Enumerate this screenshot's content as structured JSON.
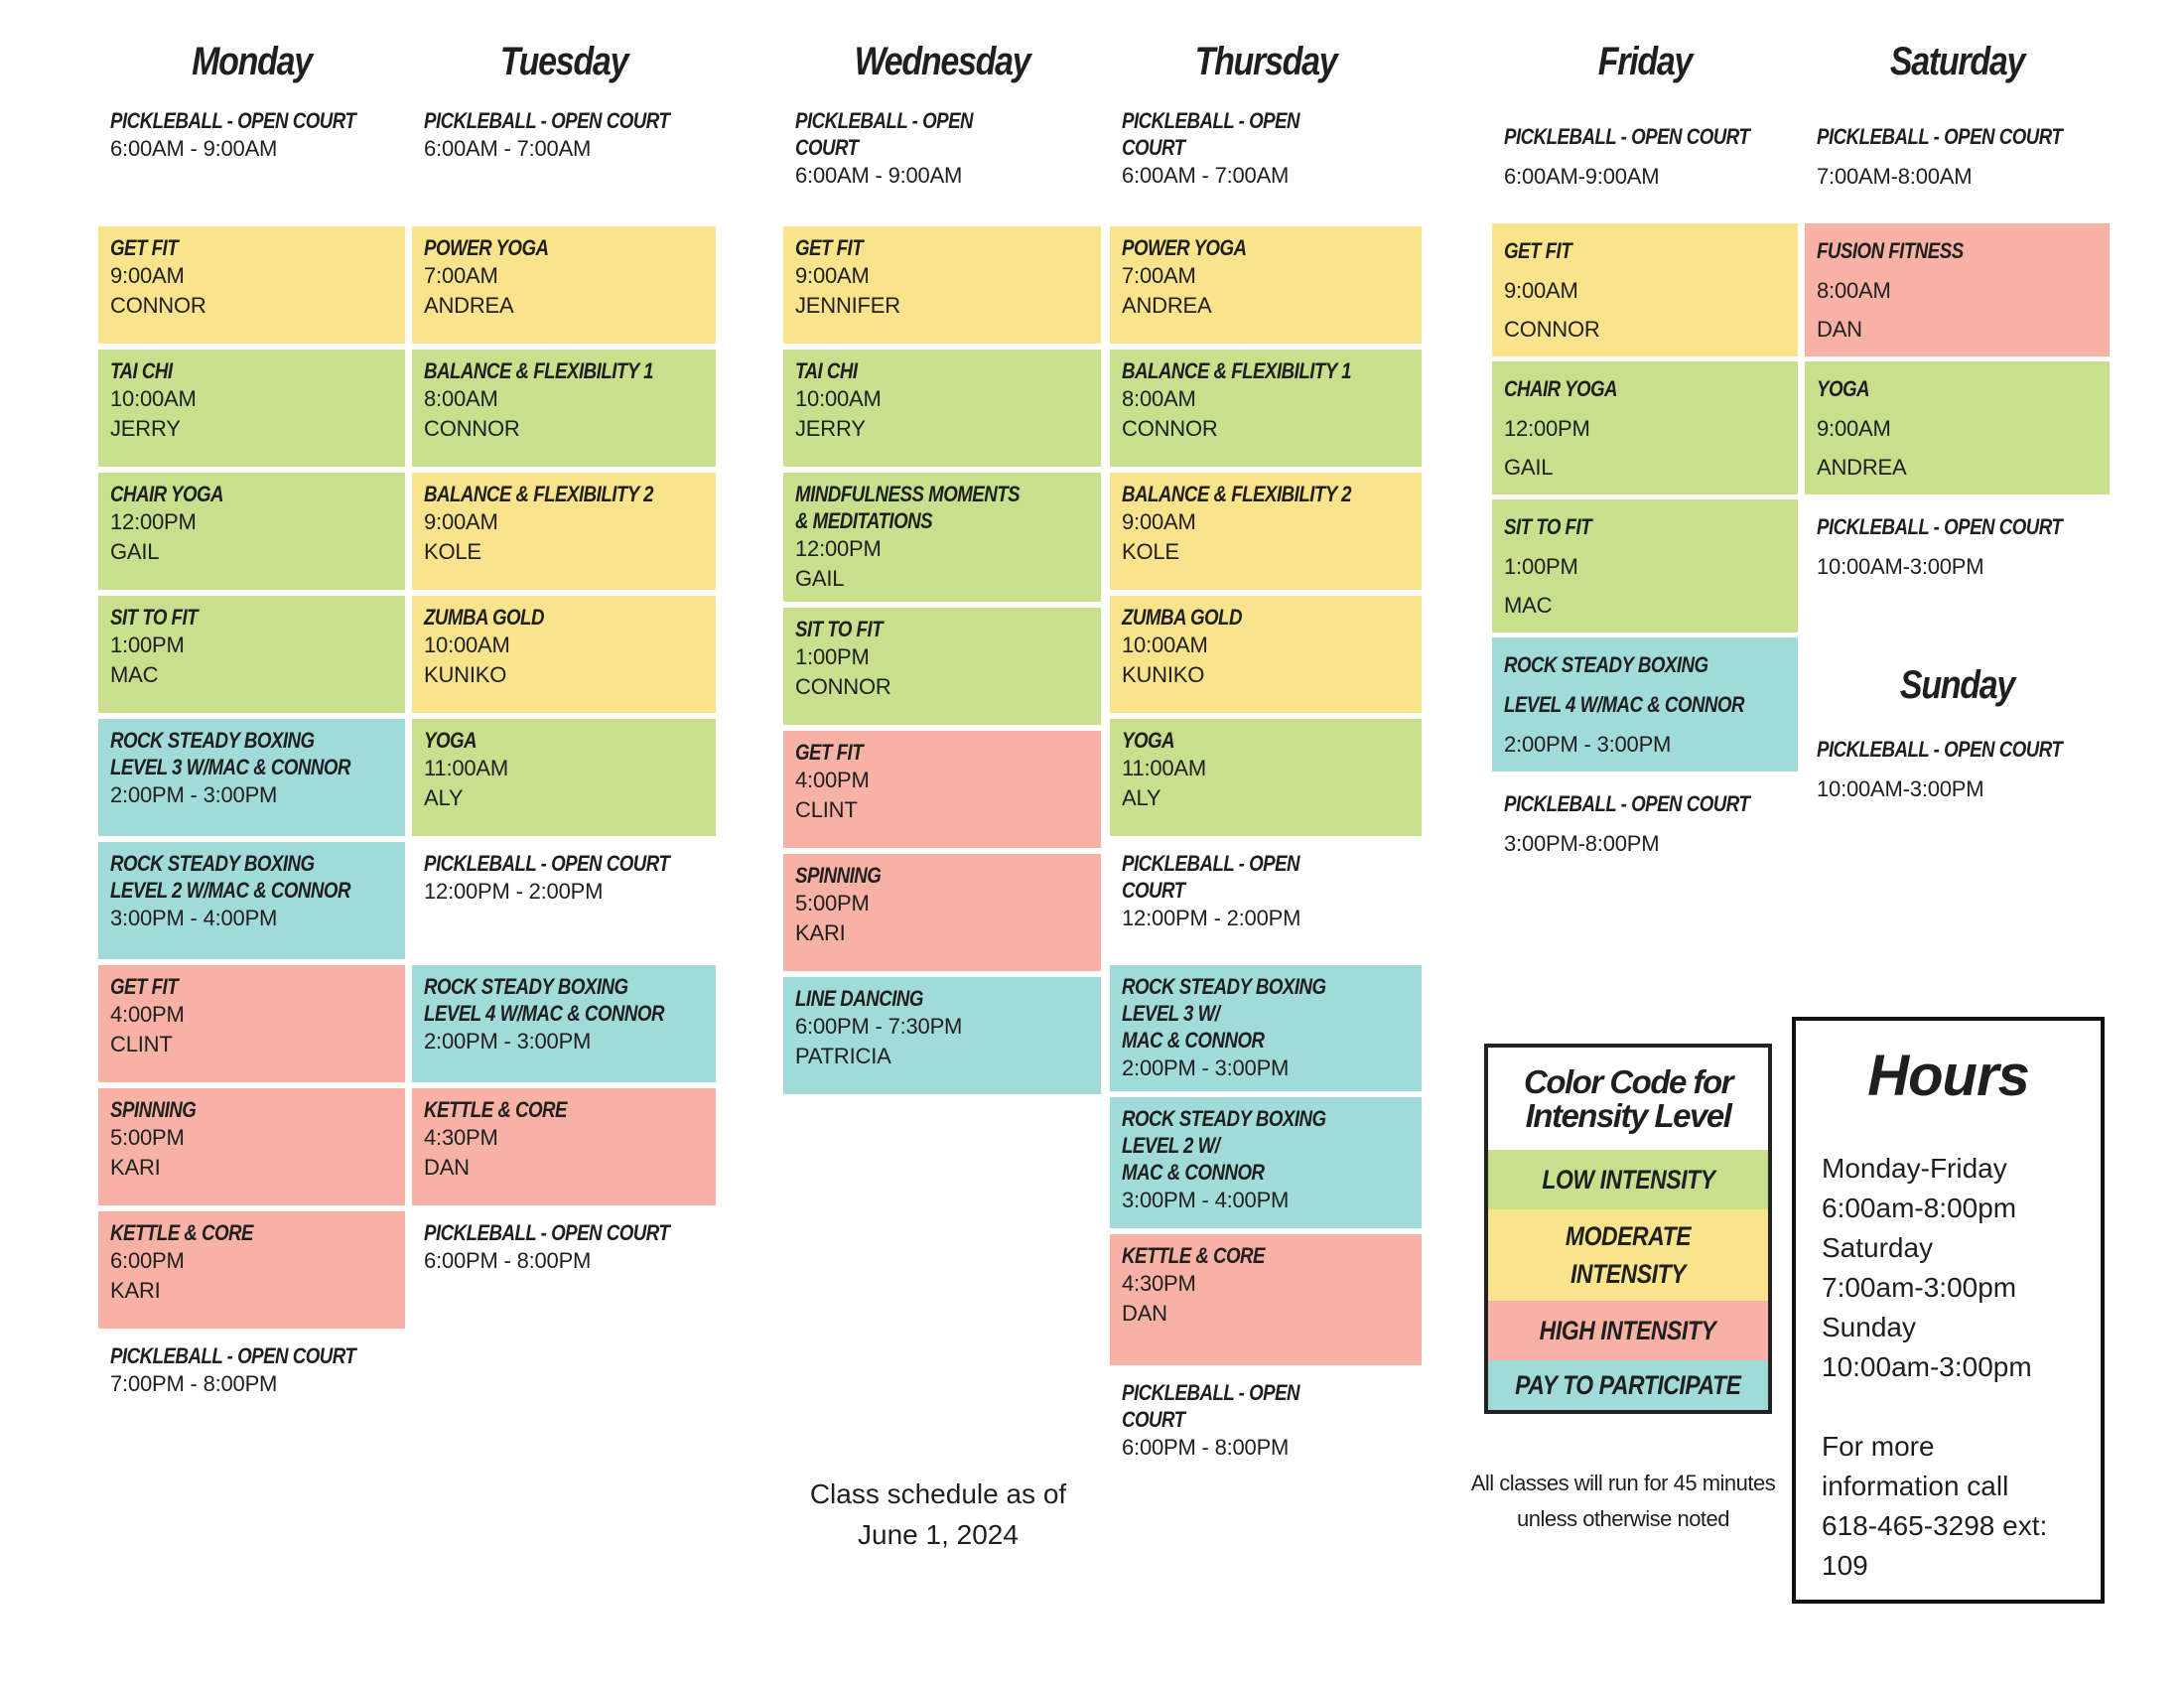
{
  "colors": {
    "low": "#c8df8e",
    "moderate": "#f9e48b",
    "high": "#f7b1a5",
    "pay": "#a0dad9"
  },
  "columns": [
    {
      "day": "Monday",
      "header": {
        "title": "PICKLEBALL - OPEN COURT",
        "time": "6:00AM - 9:00AM"
      },
      "items": [
        {
          "title": "GET FIT",
          "time": "9:00AM",
          "instructor": "CONNOR",
          "intensity": "moderate"
        },
        {
          "title": "TAI CHI",
          "time": "10:00AM",
          "instructor": "JERRY",
          "intensity": "low"
        },
        {
          "title": "CHAIR YOGA",
          "time": "12:00PM",
          "instructor": "GAIL",
          "intensity": "low"
        },
        {
          "title": "SIT TO FIT",
          "time": "1:00PM",
          "instructor": "MAC",
          "intensity": "low"
        },
        {
          "title": "ROCK STEADY BOXING\nLEVEL 3 W/MAC & CONNOR",
          "time": "2:00PM - 3:00PM",
          "intensity": "pay"
        },
        {
          "title": "ROCK STEADY BOXING\nLEVEL 2 W/MAC & CONNOR",
          "time": "3:00PM - 4:00PM",
          "intensity": "pay"
        },
        {
          "title": "GET FIT",
          "time": "4:00PM",
          "instructor": "CLINT",
          "intensity": "high"
        },
        {
          "title": "SPINNING",
          "time": "5:00PM",
          "instructor": "KARI",
          "intensity": "high"
        },
        {
          "title": "KETTLE & CORE",
          "time": "6:00PM",
          "instructor": "KARI",
          "intensity": "high"
        },
        {
          "title": "PICKLEBALL - OPEN COURT",
          "time": "7:00PM - 8:00PM",
          "intensity": "none"
        }
      ]
    },
    {
      "day": "Tuesday",
      "header": {
        "title": "PICKLEBALL - OPEN COURT",
        "time": "6:00AM - 7:00AM"
      },
      "items": [
        {
          "title": "POWER YOGA",
          "time": "7:00AM",
          "instructor": "ANDREA",
          "intensity": "moderate"
        },
        {
          "title": "BALANCE & FLEXIBILITY 1",
          "time": "8:00AM",
          "instructor": "CONNOR",
          "intensity": "low"
        },
        {
          "title": "BALANCE & FLEXIBILITY 2",
          "time": "9:00AM",
          "instructor": "KOLE",
          "intensity": "moderate"
        },
        {
          "title": "ZUMBA GOLD",
          "time": "10:00AM",
          "instructor": "KUNIKO",
          "intensity": "moderate"
        },
        {
          "title": "YOGA",
          "time": "11:00AM",
          "instructor": "ALY",
          "intensity": "low"
        },
        {
          "title": "PICKLEBALL - OPEN COURT",
          "time": "12:00PM - 2:00PM",
          "intensity": "none"
        },
        {
          "title": "ROCK STEADY BOXING\nLEVEL 4 W/MAC & CONNOR",
          "time": "2:00PM - 3:00PM",
          "intensity": "pay"
        },
        {
          "title": "KETTLE & CORE",
          "time": "4:30PM",
          "instructor": "DAN",
          "intensity": "high"
        },
        {
          "title": "PICKLEBALL - OPEN COURT",
          "time": "6:00PM - 8:00PM",
          "intensity": "none"
        }
      ]
    },
    {
      "day": "Wednesday",
      "header": {
        "title": "PICKLEBALL - OPEN\nCOURT",
        "time": "6:00AM - 9:00AM"
      },
      "items": [
        {
          "title": "GET FIT",
          "time": "9:00AM",
          "instructor": "JENNIFER",
          "intensity": "moderate"
        },
        {
          "title": "TAI CHI",
          "time": "10:00AM",
          "instructor": "JERRY",
          "intensity": "low"
        },
        {
          "title": "MINDFULNESS MOMENTS\n& MEDITATIONS",
          "time": "12:00PM",
          "instructor": "GAIL",
          "intensity": "low"
        },
        {
          "title": "SIT TO FIT",
          "time": "1:00PM",
          "instructor": "CONNOR",
          "intensity": "low"
        },
        {
          "title": "GET FIT",
          "time": "4:00PM",
          "instructor": "CLINT",
          "intensity": "high"
        },
        {
          "title": "SPINNING",
          "time": "5:00PM",
          "instructor": "KARI",
          "intensity": "high"
        },
        {
          "title": "LINE DANCING",
          "time": "6:00PM - 7:30PM",
          "instructor": "PATRICIA",
          "intensity": "pay"
        }
      ]
    },
    {
      "day": "Thursday",
      "header": {
        "title": "PICKLEBALL - OPEN\nCOURT",
        "time": "6:00AM - 7:00AM"
      },
      "items": [
        {
          "title": "POWER YOGA",
          "time": "7:00AM",
          "instructor": "ANDREA",
          "intensity": "moderate"
        },
        {
          "title": "BALANCE & FLEXIBILITY 1",
          "time": "8:00AM",
          "instructor": "CONNOR",
          "intensity": "low"
        },
        {
          "title": "BALANCE & FLEXIBILITY 2",
          "time": "9:00AM",
          "instructor": "KOLE",
          "intensity": "moderate"
        },
        {
          "title": "ZUMBA GOLD",
          "time": "10:00AM",
          "instructor": "KUNIKO",
          "intensity": "moderate"
        },
        {
          "title": "YOGA",
          "time": "11:00AM",
          "instructor": "ALY",
          "intensity": "low"
        },
        {
          "title": "PICKLEBALL - OPEN\nCOURT",
          "time": "12:00PM - 2:00PM",
          "intensity": "none"
        },
        {
          "title": "ROCK STEADY BOXING\nLEVEL 3 W/\nMAC & CONNOR",
          "time": "2:00PM - 3:00PM",
          "intensity": "pay"
        },
        {
          "title": "ROCK STEADY BOXING\nLEVEL 2 W/\nMAC & CONNOR",
          "time": "3:00PM - 4:00PM",
          "intensity": "pay"
        },
        {
          "title": "KETTLE & CORE",
          "time": "4:30PM",
          "instructor": "DAN",
          "intensity": "high"
        },
        {
          "title": "PICKLEBALL - OPEN\nCOURT",
          "time": "6:00PM - 8:00PM",
          "intensity": "none"
        }
      ]
    },
    {
      "day": "Friday",
      "header": {
        "title": "PICKLEBALL - OPEN COURT",
        "time": "6:00AM-9:00AM"
      },
      "items": [
        {
          "title": "GET FIT",
          "time": "9:00AM",
          "instructor": "CONNOR",
          "intensity": "moderate"
        },
        {
          "title": "CHAIR YOGA",
          "time": "12:00PM",
          "instructor": "GAIL",
          "intensity": "low"
        },
        {
          "title": "SIT TO FIT",
          "time": "1:00PM",
          "instructor": "MAC",
          "intensity": "low"
        },
        {
          "title": "ROCK STEADY BOXING\nLEVEL 4 W/MAC & CONNOR",
          "time": "2:00PM - 3:00PM",
          "intensity": "pay"
        },
        {
          "title": "PICKLEBALL - OPEN COURT",
          "time": "3:00PM-8:00PM",
          "intensity": "none"
        }
      ]
    },
    {
      "day": "Saturday",
      "header": {
        "title": "PICKLEBALL - OPEN COURT",
        "time": "7:00AM-8:00AM"
      },
      "items": [
        {
          "title": "FUSION FITNESS",
          "time": "8:00AM",
          "instructor": "DAN",
          "intensity": "high"
        },
        {
          "title": "YOGA",
          "time": "9:00AM",
          "instructor": "ANDREA",
          "intensity": "low"
        },
        {
          "title": "PICKLEBALL - OPEN COURT",
          "time": "10:00AM-3:00PM",
          "intensity": "none"
        }
      ]
    }
  ],
  "sunday": {
    "day": "Sunday",
    "title": "PICKLEBALL - OPEN COURT",
    "time": "10:00AM-3:00PM"
  },
  "legend": {
    "title": "Color Code for Intensity Level",
    "rows": [
      {
        "label": "LOW INTENSITY",
        "intensity": "low"
      },
      {
        "label": "MODERATE INTENSITY",
        "intensity": "moderate"
      },
      {
        "label": "HIGH INTENSITY",
        "intensity": "high"
      },
      {
        "label": "PAY TO PARTICIPATE",
        "intensity": "pay"
      }
    ]
  },
  "note": "All classes will run for 45 minutes unless otherwise noted",
  "schedule_date": "Class schedule as of June 1, 2024",
  "hours": {
    "title": "Hours",
    "lines": [
      "Monday-Friday",
      "6:00am-8:00pm",
      "Saturday",
      "7:00am-3:00pm",
      "Sunday",
      "10:00am-3:00pm"
    ],
    "contact": [
      "For more",
      "information call",
      "618-465-3298 ext: 109"
    ]
  }
}
